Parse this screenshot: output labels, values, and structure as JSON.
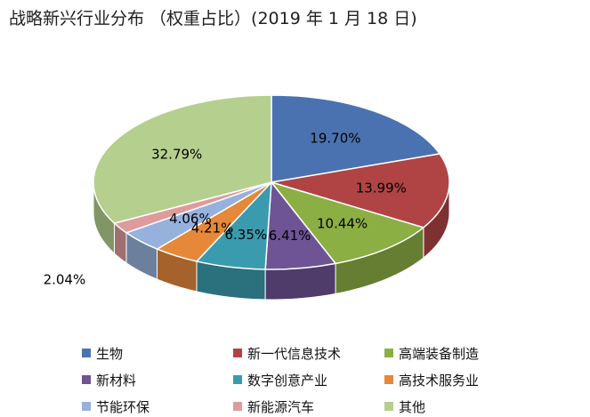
{
  "title": "战略新兴行业分布 （权重占比）(2019 年 1 月 18 日)",
  "chart_data": {
    "type": "pie",
    "title": "战略新兴行业分布 （权重占比）(2019 年 1 月 18 日)",
    "legend_position": "bottom",
    "style": "3d",
    "slices": [
      {
        "name": "生物",
        "value": 19.7,
        "label": "19.70%",
        "color": "#4A72B0"
      },
      {
        "name": "新一代信息技术",
        "value": 13.99,
        "label": "13.99%",
        "color": "#B04444"
      },
      {
        "name": "高端装备制造",
        "value": 10.44,
        "label": "10.44%",
        "color": "#8CAF44"
      },
      {
        "name": "新材料",
        "value": 6.41,
        "label": "6.41%",
        "color": "#6E5495"
      },
      {
        "name": "数字创意产业",
        "value": 6.35,
        "label": "6.35%",
        "color": "#3A9BAE"
      },
      {
        "name": "高技术服务业",
        "value": 4.21,
        "label": "4.21%",
        "color": "#E5883A"
      },
      {
        "name": "节能环保",
        "value": 4.06,
        "label": "4.06%",
        "color": "#96B2DC"
      },
      {
        "name": "新能源汽车",
        "value": 2.04,
        "label": "2.04%",
        "color": "#DE9B9B"
      },
      {
        "name": "其他",
        "value": 32.79,
        "label": "32.79%",
        "color": "#B5CF8E"
      }
    ]
  }
}
